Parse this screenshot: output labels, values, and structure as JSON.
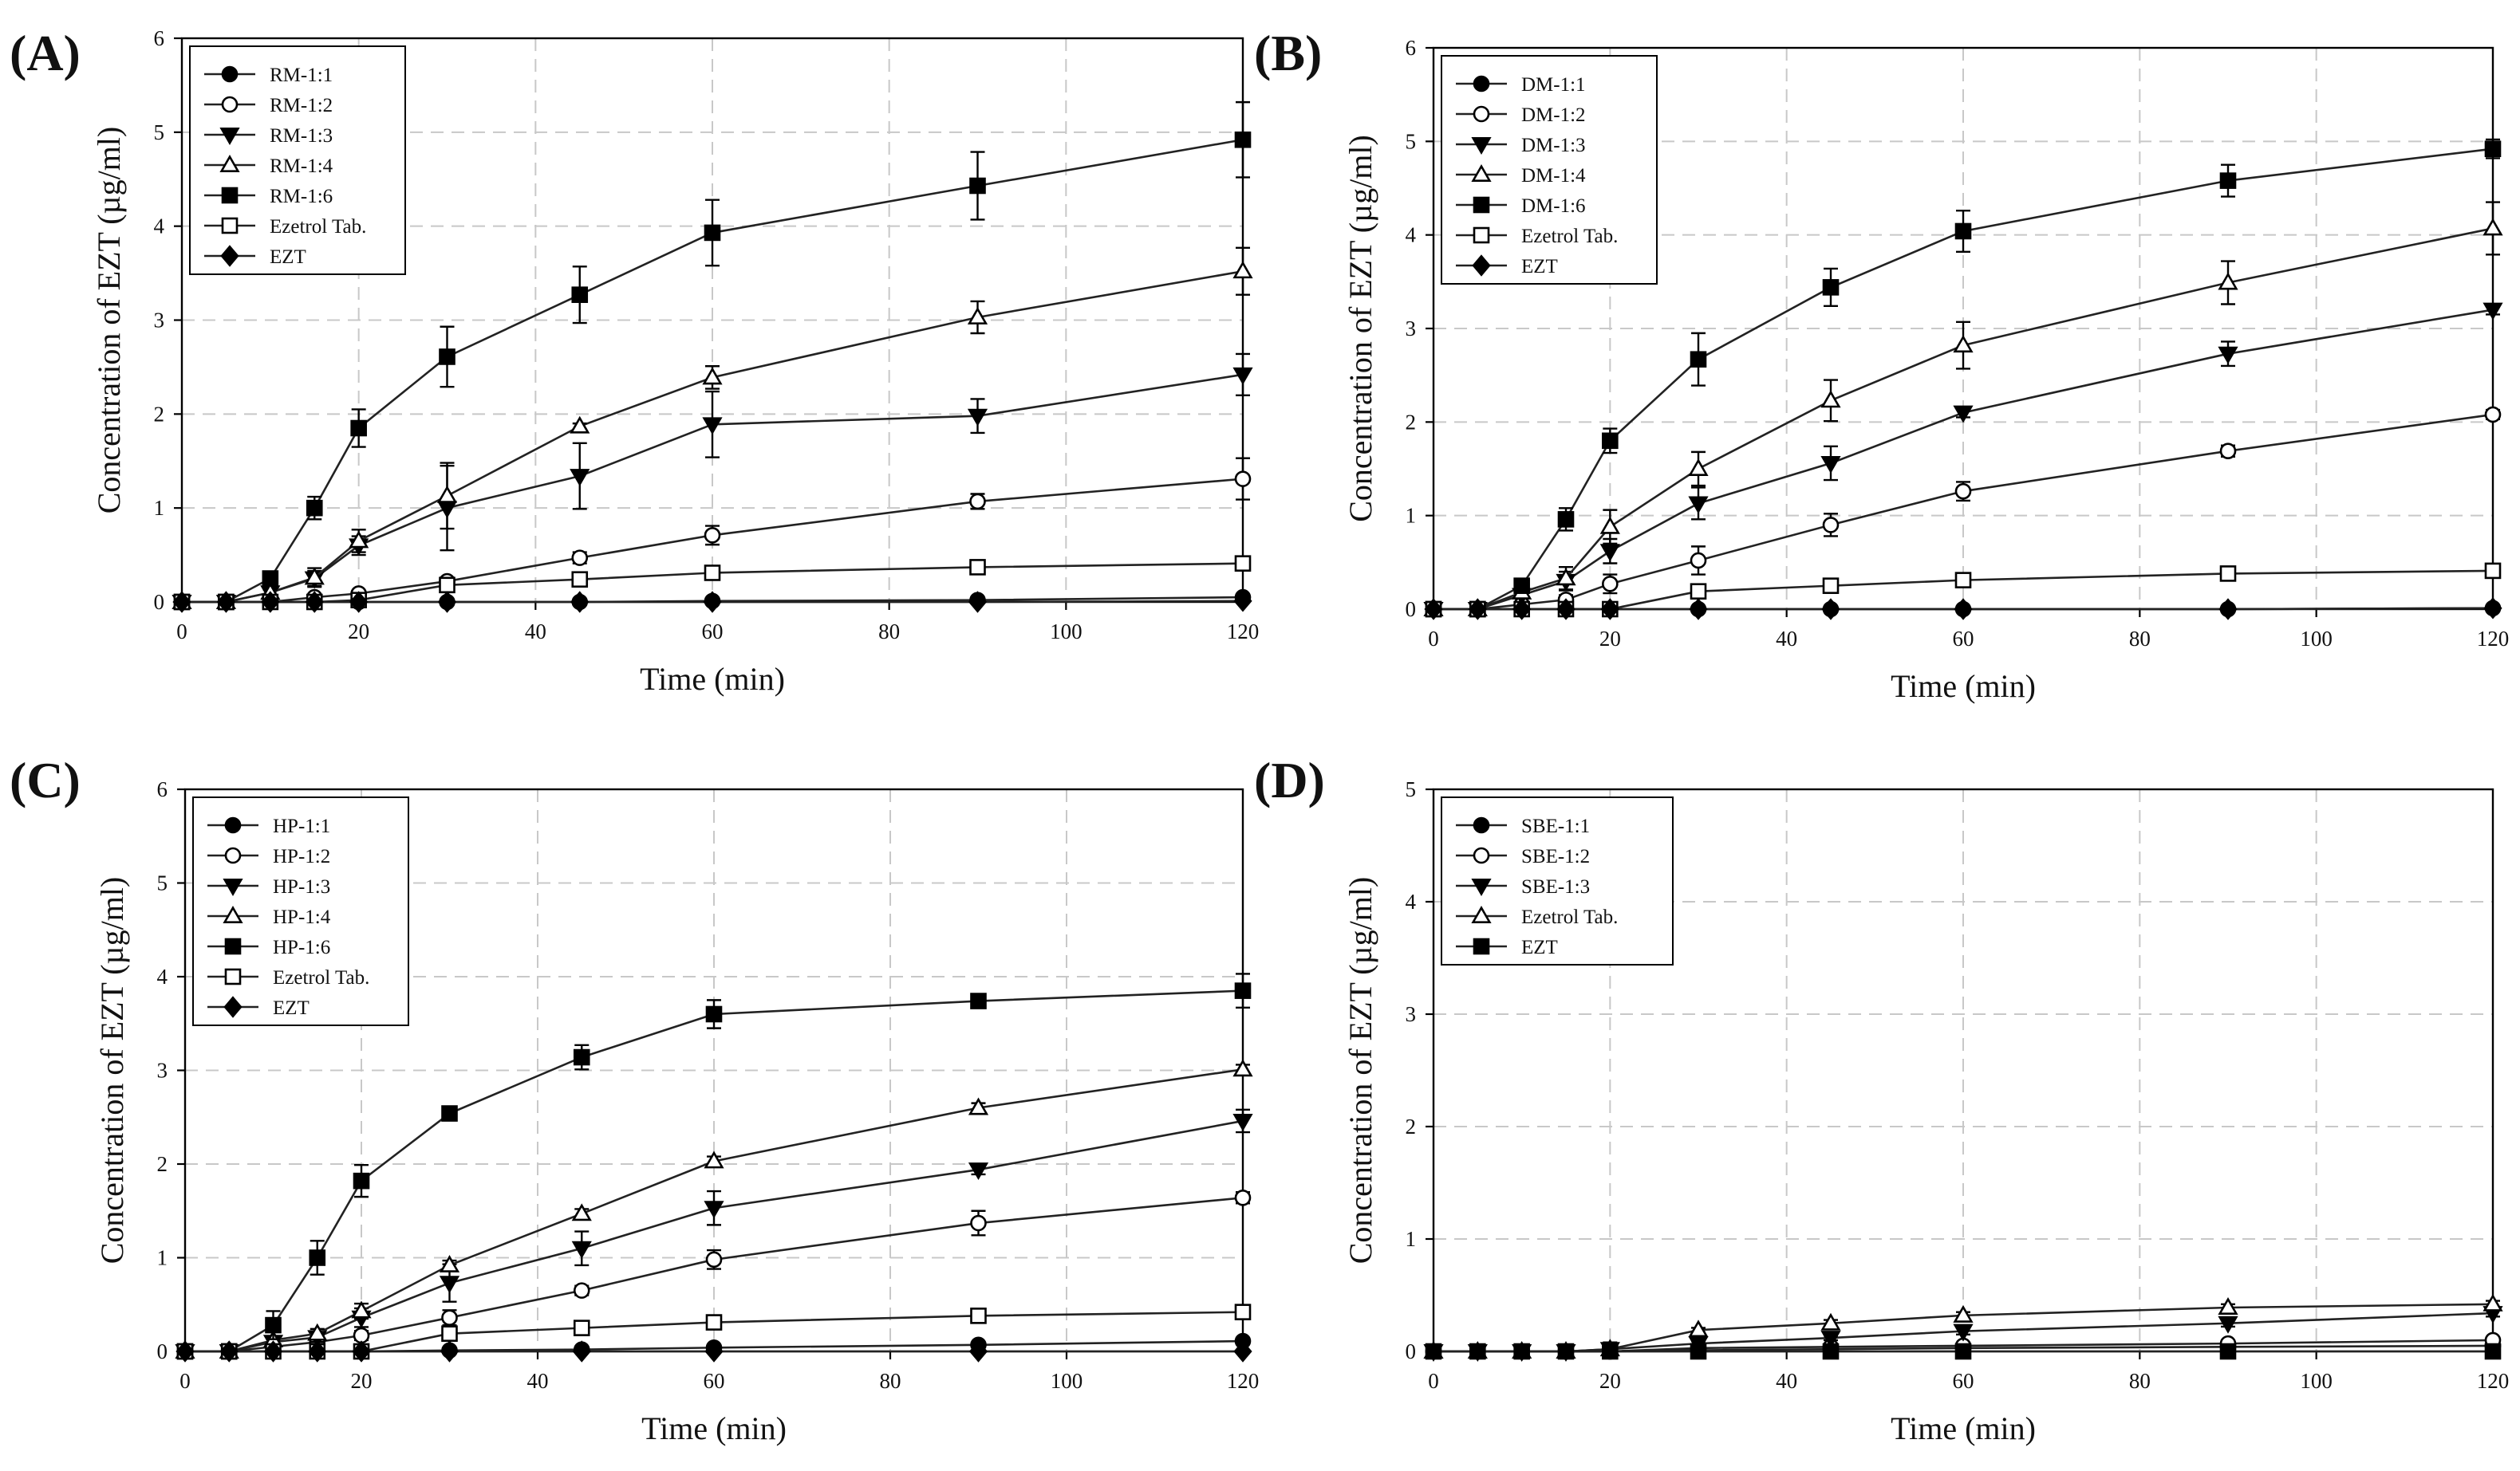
{
  "figure": {
    "common": {
      "xlabel": "Time (min)",
      "ylabel": "Concentration of  EZT (µg/ml)",
      "x_ticks": [
        0,
        20,
        40,
        60,
        80,
        100,
        120
      ],
      "time_points": [
        0,
        5,
        10,
        15,
        20,
        30,
        45,
        60,
        90,
        120
      ]
    }
  },
  "chart_data": [
    {
      "type": "line",
      "panel_label": "(A)",
      "xlabel": "Time (min)",
      "ylabel": "Concentration of  EZT (µg/ml)",
      "xlim": [
        0,
        120
      ],
      "ylim": [
        0,
        6
      ],
      "y_ticks": [
        0,
        1,
        2,
        3,
        4,
        5,
        6
      ],
      "grid": true,
      "legend_position": "top-left",
      "x": [
        0,
        5,
        10,
        15,
        20,
        30,
        45,
        60,
        90,
        120
      ],
      "series": [
        {
          "name": "RM-1:1",
          "marker": "circle-filled",
          "values": [
            0,
            0,
            0,
            0,
            0.0,
            0.0,
            0.0,
            0.01,
            0.02,
            0.05
          ]
        },
        {
          "name": "RM-1:2",
          "marker": "circle-open",
          "values": [
            0,
            0,
            0,
            0.05,
            0.09,
            0.22,
            0.47,
            0.71,
            1.07,
            1.31
          ],
          "err": [
            0,
            0,
            0,
            0.02,
            0.03,
            0.04,
            0.06,
            0.1,
            0.08,
            0.22
          ]
        },
        {
          "name": "RM-1:3",
          "marker": "triangle-down-filled",
          "values": [
            0,
            0,
            0.1,
            0.25,
            0.6,
            1.0,
            1.34,
            1.89,
            1.98,
            2.42
          ],
          "err": [
            0,
            0,
            0.03,
            0.08,
            0.1,
            0.45,
            0.35,
            0.35,
            0.18,
            0.22
          ]
        },
        {
          "name": "RM-1:4",
          "marker": "triangle-up-open",
          "values": [
            0,
            0,
            0.1,
            0.26,
            0.65,
            1.13,
            1.87,
            2.39,
            3.03,
            3.52
          ],
          "err": [
            0,
            0,
            0.03,
            0.1,
            0.12,
            0.35,
            0.03,
            0.12,
            0.17,
            0.25
          ]
        },
        {
          "name": "RM-1:6",
          "marker": "square-filled",
          "values": [
            0,
            0,
            0.25,
            1.0,
            1.85,
            2.61,
            3.27,
            3.93,
            4.43,
            4.92
          ],
          "err": [
            0,
            0,
            0.05,
            0.12,
            0.2,
            0.32,
            0.3,
            0.35,
            0.36,
            0.4
          ]
        },
        {
          "name": "Ezetrol Tab.",
          "marker": "square-open",
          "values": [
            0,
            0,
            0,
            0.0,
            0.02,
            0.18,
            0.24,
            0.31,
            0.37,
            0.41
          ],
          "err": [
            0,
            0,
            0,
            0,
            0.01,
            0.02,
            0.02,
            0.02,
            0.03,
            0.03
          ]
        },
        {
          "name": "EZT",
          "marker": "diamond-filled",
          "values": [
            0,
            0,
            0,
            0,
            0,
            0,
            0,
            0,
            0,
            0.01
          ]
        }
      ]
    },
    {
      "type": "line",
      "panel_label": "(B)",
      "xlabel": "Time (min)",
      "ylabel": "Concentration of  EZT (µg/ml)",
      "xlim": [
        0,
        120
      ],
      "ylim": [
        0,
        6
      ],
      "y_ticks": [
        0,
        1,
        2,
        3,
        4,
        5,
        6
      ],
      "grid": true,
      "legend_position": "top-left",
      "x": [
        0,
        5,
        10,
        15,
        20,
        30,
        45,
        60,
        90,
        120
      ],
      "series": [
        {
          "name": "DM-1:1",
          "marker": "circle-filled",
          "values": [
            0,
            0,
            0,
            0,
            0,
            0,
            0,
            0,
            0,
            0.01
          ]
        },
        {
          "name": "DM-1:2",
          "marker": "circle-open",
          "values": [
            0,
            0,
            0.05,
            0.1,
            0.27,
            0.52,
            0.9,
            1.26,
            1.69,
            2.08
          ],
          "err": [
            0,
            0,
            0.02,
            0.05,
            0.1,
            0.15,
            0.12,
            0.1,
            0.06,
            0.05
          ]
        },
        {
          "name": "DM-1:3",
          "marker": "triangle-down-filled",
          "values": [
            0,
            0,
            0.15,
            0.3,
            0.62,
            1.13,
            1.56,
            2.1,
            2.73,
            3.2
          ],
          "err": [
            0,
            0,
            0.03,
            0.1,
            0.13,
            0.17,
            0.18,
            0.05,
            0.13,
            0.05
          ]
        },
        {
          "name": "DM-1:4",
          "marker": "triangle-up-open",
          "values": [
            0,
            0,
            0.18,
            0.33,
            0.88,
            1.5,
            2.23,
            2.82,
            3.49,
            4.07
          ],
          "err": [
            0,
            0,
            0.04,
            0.12,
            0.18,
            0.18,
            0.22,
            0.25,
            0.23,
            0.28
          ]
        },
        {
          "name": "DM-1:6",
          "marker": "square-filled",
          "values": [
            0,
            0,
            0.25,
            0.96,
            1.8,
            2.67,
            3.44,
            4.04,
            4.58,
            4.92
          ],
          "err": [
            0,
            0,
            0.04,
            0.12,
            0.13,
            0.28,
            0.2,
            0.22,
            0.17,
            0.1
          ]
        },
        {
          "name": "Ezetrol Tab.",
          "marker": "square-open",
          "values": [
            0,
            0,
            0,
            0,
            0,
            0.19,
            0.25,
            0.31,
            0.38,
            0.41
          ],
          "err": [
            0,
            0,
            0,
            0,
            0,
            0.02,
            0.02,
            0.02,
            0.02,
            0.02
          ]
        },
        {
          "name": "EZT",
          "marker": "diamond-filled",
          "values": [
            0,
            0,
            0,
            0,
            0,
            0,
            0,
            0,
            0,
            0.01
          ]
        }
      ]
    },
    {
      "type": "line",
      "panel_label": "(C)",
      "xlabel": "Time (min)",
      "ylabel": "Concentration of  EZT (µg/ml)",
      "xlim": [
        0,
        120
      ],
      "ylim": [
        0,
        6
      ],
      "y_ticks": [
        0,
        1,
        2,
        3,
        4,
        5,
        6
      ],
      "grid": true,
      "legend_position": "top-left",
      "x": [
        0,
        5,
        10,
        15,
        20,
        30,
        45,
        60,
        90,
        120
      ],
      "series": [
        {
          "name": "HP-1:1",
          "marker": "circle-filled",
          "values": [
            0,
            0,
            0,
            0,
            0.0,
            0.01,
            0.02,
            0.04,
            0.07,
            0.11
          ]
        },
        {
          "name": "HP-1:2",
          "marker": "circle-open",
          "values": [
            0,
            0,
            0.05,
            0.1,
            0.17,
            0.36,
            0.65,
            0.98,
            1.37,
            1.64
          ],
          "err": [
            0,
            0,
            0.02,
            0.03,
            0.05,
            0.08,
            0.05,
            0.1,
            0.13,
            0.06
          ]
        },
        {
          "name": "HP-1:3",
          "marker": "triangle-down-filled",
          "values": [
            0,
            0,
            0.1,
            0.15,
            0.36,
            0.73,
            1.1,
            1.53,
            1.94,
            2.46
          ],
          "err": [
            0,
            0,
            0.03,
            0.05,
            0.1,
            0.2,
            0.18,
            0.18,
            0.05,
            0.12
          ]
        },
        {
          "name": "HP-1:4",
          "marker": "triangle-up-open",
          "values": [
            0,
            0,
            0.12,
            0.19,
            0.43,
            0.92,
            1.47,
            2.03,
            2.6,
            3.01
          ],
          "err": [
            0,
            0,
            0.03,
            0.05,
            0.08,
            0.05,
            0.05,
            0.05,
            0.05,
            0.05
          ]
        },
        {
          "name": "HP-1:6",
          "marker": "square-filled",
          "values": [
            0,
            0,
            0.28,
            1.0,
            1.82,
            2.54,
            3.14,
            3.6,
            3.74,
            3.85
          ],
          "err": [
            0,
            0,
            0.15,
            0.18,
            0.17,
            0.06,
            0.13,
            0.15,
            0.05,
            0.18
          ]
        },
        {
          "name": "Ezetrol Tab.",
          "marker": "square-open",
          "values": [
            0,
            0,
            0,
            0,
            0,
            0.19,
            0.25,
            0.31,
            0.38,
            0.42
          ],
          "err": [
            0,
            0,
            0,
            0,
            0,
            0.02,
            0.02,
            0.02,
            0.02,
            0.02
          ]
        },
        {
          "name": "EZT",
          "marker": "diamond-filled",
          "values": [
            0,
            0,
            0,
            0,
            0,
            0,
            0,
            0,
            0,
            0
          ]
        }
      ]
    },
    {
      "type": "line",
      "panel_label": "(D)",
      "xlabel": "Time (min)",
      "ylabel": "Concentration of  EZT (µg/ml)",
      "xlim": [
        0,
        120
      ],
      "ylim": [
        0,
        5
      ],
      "y_ticks": [
        0,
        1,
        2,
        3,
        4,
        5
      ],
      "grid": true,
      "legend_position": "top-left",
      "x": [
        0,
        5,
        10,
        15,
        20,
        30,
        45,
        60,
        90,
        120
      ],
      "series": [
        {
          "name": "SBE-1:1",
          "marker": "circle-filled",
          "values": [
            0,
            0,
            0,
            0,
            0,
            0.01,
            0.02,
            0.03,
            0.04,
            0.05
          ]
        },
        {
          "name": "SBE-1:2",
          "marker": "circle-open",
          "values": [
            0,
            0,
            0,
            0,
            0,
            0.03,
            0.04,
            0.05,
            0.07,
            0.1
          ]
        },
        {
          "name": "SBE-1:3",
          "marker": "triangle-down-filled",
          "values": [
            0,
            0,
            0,
            0,
            0.02,
            0.07,
            0.12,
            0.18,
            0.25,
            0.34
          ],
          "err": [
            0,
            0,
            0,
            0,
            0.01,
            0.02,
            0.02,
            0.03,
            0.03,
            0.03
          ]
        },
        {
          "name": "Ezetrol Tab.",
          "marker": "triangle-up-open",
          "values": [
            0,
            0,
            0,
            0,
            0.02,
            0.19,
            0.25,
            0.32,
            0.39,
            0.42
          ],
          "err": [
            0,
            0,
            0,
            0,
            0.06,
            0.02,
            0.03,
            0.03,
            0.03,
            0.03
          ]
        },
        {
          "name": "EZT",
          "marker": "square-filled",
          "values": [
            0,
            0,
            0,
            0,
            0,
            0,
            0,
            0,
            0,
            0
          ]
        }
      ]
    }
  ]
}
